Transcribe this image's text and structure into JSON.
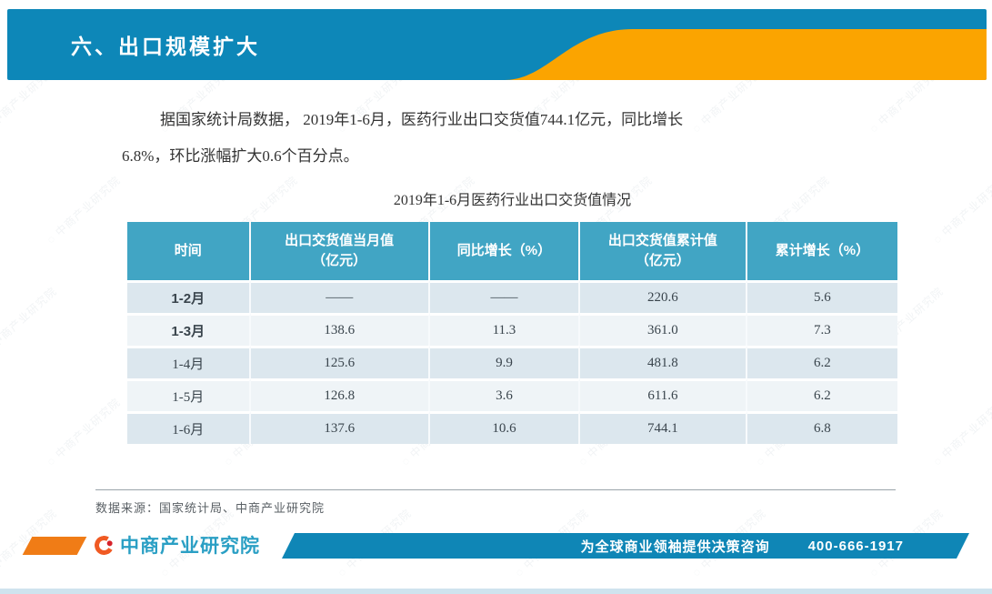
{
  "banner": {
    "title": "六、出口规模扩大",
    "bg_color": "#0d87b8",
    "accent_color": "#fba400"
  },
  "paragraph": {
    "lines": [
      "据国家统计局数据， 2019年1-6月，医药行业出口交货值744.1亿元，同比增长",
      "6.8%，环比涨幅扩大0.6个百分点。"
    ]
  },
  "table": {
    "title": "2019年1-6月医药行业出口交货值情况",
    "header_bg": "#41a5c4",
    "row_colors": {
      "odd": "#dce7ee",
      "even": "#eff4f7"
    },
    "columns": [
      "时间",
      "出口交货值当月值\n（亿元）",
      "同比增长（%）",
      "出口交货值累计值\n（亿元）",
      "累计增长（%）"
    ],
    "rows": [
      [
        "1-2月",
        "——",
        "——",
        "220.6",
        "5.6"
      ],
      [
        "1-3月",
        "138.6",
        "11.3",
        "361.0",
        "7.3"
      ],
      [
        "1-4月",
        "125.6",
        "9.9",
        "481.8",
        "6.2"
      ],
      [
        "1-5月",
        "126.8",
        "3.6",
        "611.6",
        "6.2"
      ],
      [
        "1-6月",
        "137.6",
        "10.6",
        "744.1",
        "6.8"
      ]
    ]
  },
  "source": {
    "text": "数据来源：国家统计局、中商产业研究院"
  },
  "footer": {
    "logo_text": "中商产业研究院",
    "slogan": "为全球商业领袖提供决策咨询",
    "phone": "400-666-1917",
    "bar_color": "#0f86b6",
    "accent_color": "#f07c16"
  },
  "watermark": {
    "text": "中商产业研究院"
  }
}
